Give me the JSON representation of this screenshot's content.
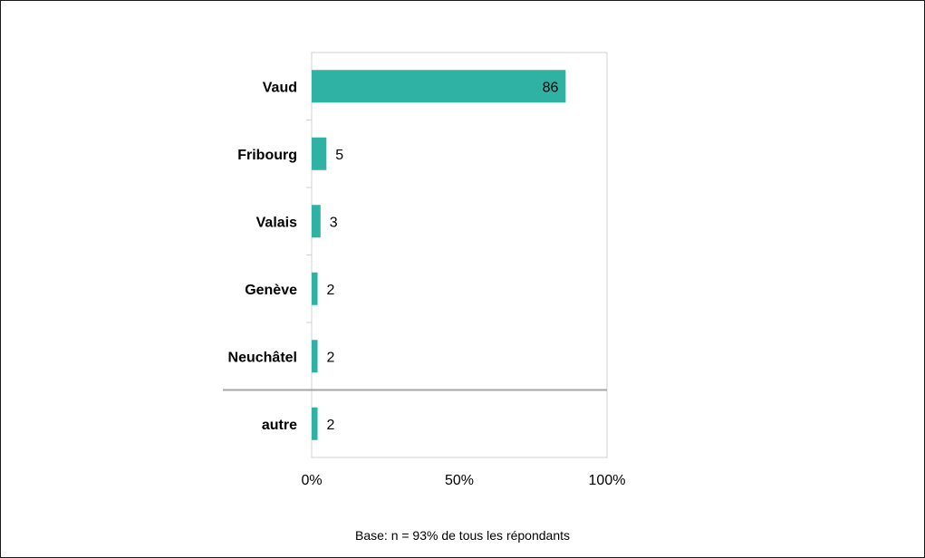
{
  "chart_data": {
    "type": "bar",
    "orientation": "horizontal",
    "categories": [
      "Vaud",
      "Fribourg",
      "Valais",
      "Genève",
      "Neuchâtel",
      "autre"
    ],
    "values": [
      86,
      5,
      3,
      2,
      2,
      2
    ],
    "data_labels": [
      "86",
      "5",
      "3",
      "2",
      "2",
      "2"
    ],
    "xlim": [
      0,
      100
    ],
    "x_ticks": [
      0,
      50,
      100
    ],
    "x_tick_labels": [
      "0%",
      "50%",
      "100%"
    ],
    "title": "",
    "xlabel": "",
    "ylabel": "",
    "grid": false,
    "separator_before_last_category": true,
    "bar_color": "#2fb1a4"
  },
  "footnote": "Base: n = 93% de tous les répondants"
}
